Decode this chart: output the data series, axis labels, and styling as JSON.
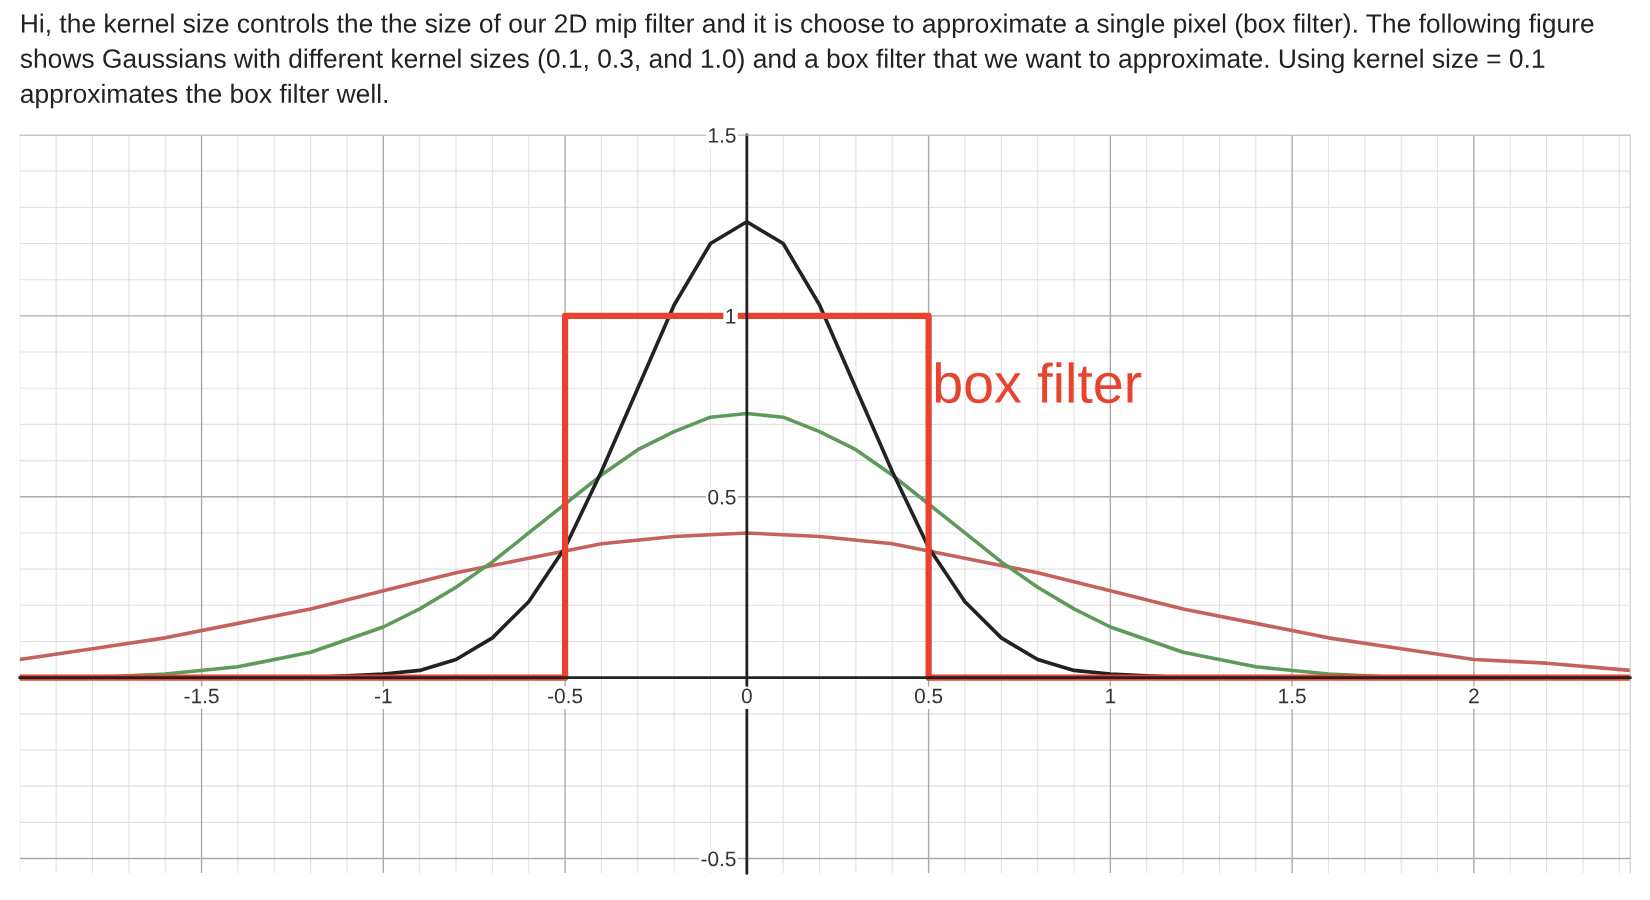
{
  "chart_data": {
    "type": "line",
    "title": "Hi, the kernel size controls the the size of our 2D mip filter and it is choose to approximate a single pixel (box filter). The following figure shows Gaussians with different kernel sizes (0.1, 0.3, and 1.0) and a box filter that we want to approximate. Using kernel size = 0.1 approximates the box filter well.",
    "xlim": [
      -2.0,
      2.43
    ],
    "ylim": [
      -0.54,
      1.5
    ],
    "xticks": [
      -1.5,
      -1,
      -0.5,
      0,
      0.5,
      1,
      1.5,
      2
    ],
    "yticks": [
      -0.5,
      0.5,
      1,
      1.5
    ],
    "grid": true,
    "series": [
      {
        "color": "#c4625c",
        "x": [
          -2.0,
          -1.8,
          -1.6,
          -1.4,
          -1.2,
          -1.0,
          -0.8,
          -0.6,
          -0.4,
          -0.2,
          0,
          0.2,
          0.4,
          0.6,
          0.8,
          1.0,
          1.2,
          1.4,
          1.6,
          1.8,
          2.0,
          2.2,
          2.43
        ],
        "values": [
          0.05,
          0.08,
          0.11,
          0.15,
          0.19,
          0.24,
          0.29,
          0.33,
          0.37,
          0.39,
          0.4,
          0.39,
          0.37,
          0.33,
          0.29,
          0.24,
          0.19,
          0.15,
          0.11,
          0.08,
          0.05,
          0.04,
          0.02
        ]
      },
      {
        "color": "#5e9a5a",
        "x": [
          -2.0,
          -1.8,
          -1.6,
          -1.4,
          -1.2,
          -1.0,
          -0.9,
          -0.8,
          -0.7,
          -0.6,
          -0.5,
          -0.4,
          -0.3,
          -0.2,
          -0.1,
          0,
          0.1,
          0.2,
          0.3,
          0.4,
          0.5,
          0.6,
          0.7,
          0.8,
          0.9,
          1.0,
          1.2,
          1.4,
          1.6,
          1.8,
          2.0,
          2.43
        ],
        "values": [
          0.0,
          0.0,
          0.01,
          0.03,
          0.07,
          0.14,
          0.19,
          0.25,
          0.32,
          0.4,
          0.48,
          0.56,
          0.63,
          0.68,
          0.72,
          0.73,
          0.72,
          0.68,
          0.63,
          0.56,
          0.48,
          0.4,
          0.32,
          0.25,
          0.19,
          0.14,
          0.07,
          0.03,
          0.01,
          0.0,
          0.0,
          0.0
        ]
      },
      {
        "color": "#222222",
        "x": [
          -2.0,
          -1.2,
          -1.0,
          -0.9,
          -0.8,
          -0.7,
          -0.6,
          -0.5,
          -0.4,
          -0.3,
          -0.2,
          -0.1,
          0,
          0.1,
          0.2,
          0.3,
          0.4,
          0.5,
          0.6,
          0.7,
          0.8,
          0.9,
          1.0,
          1.2,
          2.43
        ],
        "values": [
          0.0,
          0.0,
          0.01,
          0.02,
          0.05,
          0.11,
          0.21,
          0.36,
          0.57,
          0.8,
          1.03,
          1.2,
          1.26,
          1.2,
          1.03,
          0.8,
          0.57,
          0.36,
          0.21,
          0.11,
          0.05,
          0.02,
          0.01,
          0.0,
          0.0
        ]
      },
      {
        "color": "#e8432e",
        "x": [
          -2.0,
          -0.5,
          -0.5,
          0.5,
          0.5,
          2.43
        ],
        "values": [
          0,
          0,
          1,
          1,
          0,
          0
        ]
      }
    ],
    "annotations": [
      {
        "text": "box filter",
        "x": 0.51,
        "y": 0.8
      }
    ]
  }
}
